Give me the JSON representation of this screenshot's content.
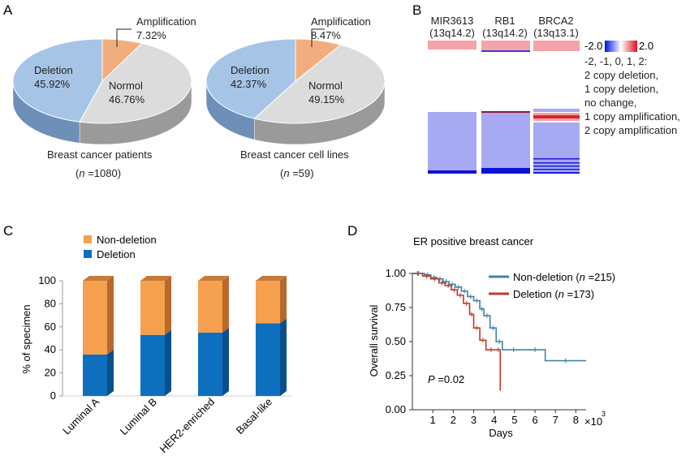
{
  "panels": {
    "a": "A",
    "b": "B",
    "c": "C",
    "d": "D"
  },
  "colors": {
    "deletion_pie": "#a6c4e6",
    "normal_pie": "#dcdcdc",
    "amplification_pie": "#f2ad7e",
    "deletion_bar": "#0f6fbf",
    "nondeletion_bar": "#f5a04e",
    "km_nondeletion": "#3f82a8",
    "km_deletion": "#c0392b"
  },
  "chart_data": [
    {
      "type": "pie",
      "caption": "Breast cancer patients",
      "n_italic": "n",
      "n_rest": " =1080)",
      "slices": [
        {
          "name": "Amplification",
          "value": 7.32,
          "label": "7.32%"
        },
        {
          "name": "Normol",
          "value": 46.76,
          "label": "46.76%"
        },
        {
          "name": "Deletion",
          "value": 45.92,
          "label": "45.92%"
        }
      ]
    },
    {
      "type": "pie",
      "caption": "Breast cancer cell lines",
      "n_italic": "n",
      "n_rest": " =59)",
      "slices": [
        {
          "name": "Amplification",
          "value": 8.47,
          "label": "8.47%"
        },
        {
          "name": "Normol",
          "value": 49.15,
          "label": "49.15%"
        },
        {
          "name": "Deletion",
          "value": 42.37,
          "label": "42.37%"
        }
      ]
    },
    {
      "type": "heatmap",
      "genes": [
        {
          "name": "MIR3613",
          "locus": "(13q14.2)"
        },
        {
          "name": "RB1",
          "locus": "(13q14.2)"
        },
        {
          "name": "BRCA2",
          "locus": "(13q13.1)"
        }
      ],
      "scale_min": "-2.0",
      "scale_max": "2.0",
      "legend_lines": [
        "-2, -1, 0, 1, 2:",
        "2 copy deletion,",
        "1 copy deletion,",
        "no change,",
        "1 copy amplification,",
        "2 copy amplification"
      ]
    },
    {
      "type": "bar",
      "stacked": true,
      "categories": [
        "Luminal A",
        "Luminal B",
        "HER2-enriched",
        "Basal-like"
      ],
      "series": [
        {
          "name": "Deletion",
          "values": [
            36,
            53,
            55,
            63
          ]
        },
        {
          "name": "Non-deletion",
          "values": [
            64,
            47,
            45,
            37
          ]
        }
      ],
      "ylabel": "% of specimen",
      "ylim": [
        0,
        100
      ],
      "yticks": [
        "0",
        "20",
        "40",
        "60",
        "80",
        "100"
      ]
    },
    {
      "type": "line",
      "title": "ER positive breast cancer",
      "xlabel": "Days",
      "x_multiplier": "×10",
      "x_exponent": "3",
      "ylabel": "Overall survival",
      "xlim": [
        0,
        8.5
      ],
      "ylim": [
        0,
        1
      ],
      "xticks": [
        "1",
        "2",
        "3",
        "4",
        "5",
        "6",
        "7",
        "8"
      ],
      "yticks": [
        "0.00",
        "0.25",
        "0.50",
        "0.75",
        "1.00"
      ],
      "p_italic": "P",
      "p_rest": " =0.02",
      "series": [
        {
          "name": "Non-deletion",
          "n_label": " =215)",
          "x": [
            0,
            0.6,
            0.9,
            1.2,
            1.5,
            1.8,
            2.1,
            2.4,
            2.7,
            3.0,
            3.3,
            3.5,
            3.8,
            4.1,
            4.4,
            5.5,
            6.5,
            8.5
          ],
          "y": [
            1.0,
            0.99,
            0.97,
            0.96,
            0.94,
            0.92,
            0.9,
            0.87,
            0.83,
            0.8,
            0.74,
            0.69,
            0.6,
            0.5,
            0.44,
            0.44,
            0.36,
            0.36
          ]
        },
        {
          "name": "Deletion",
          "n_label": " =173)",
          "x": [
            0,
            0.5,
            0.9,
            1.3,
            1.6,
            1.9,
            2.2,
            2.5,
            2.8,
            3.0,
            3.3,
            3.6,
            4.1,
            4.3
          ],
          "y": [
            1.0,
            0.98,
            0.96,
            0.93,
            0.91,
            0.88,
            0.84,
            0.78,
            0.7,
            0.6,
            0.51,
            0.44,
            0.44,
            0.14
          ]
        }
      ]
    }
  ]
}
